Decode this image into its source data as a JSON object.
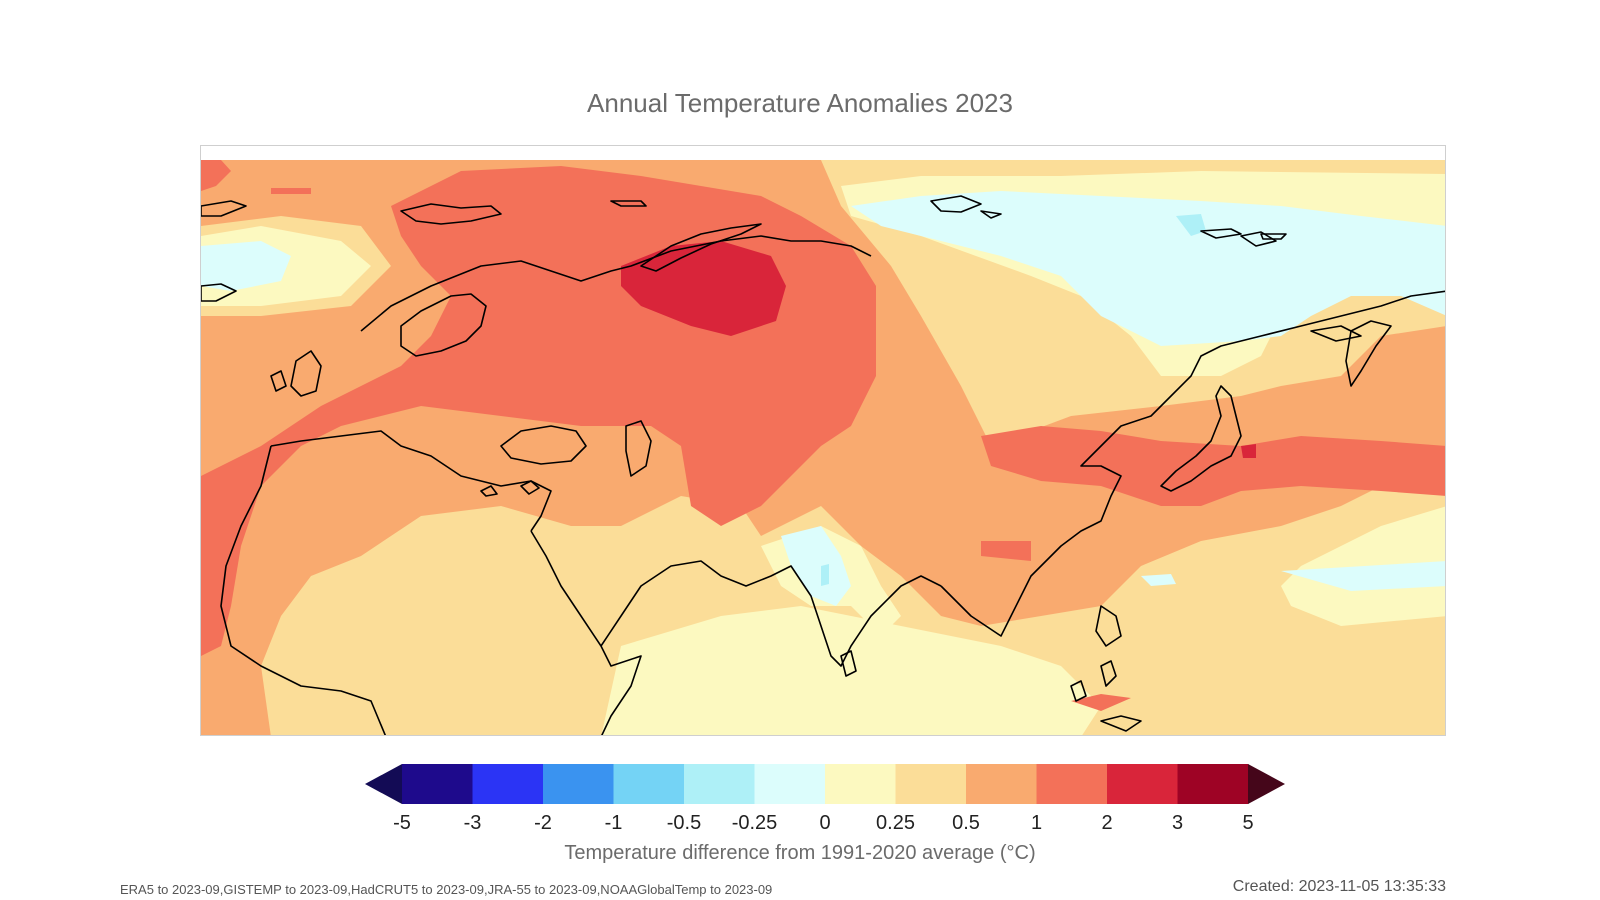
{
  "title": "Annual Temperature Anomalies 2023",
  "colorbar": {
    "label": "Temperature difference from 1991-2020 average (°C)",
    "ticks": [
      "-5",
      "-3",
      "-2",
      "-1",
      "-0.5",
      "-0.25",
      "0",
      "0.25",
      "0.5",
      "1",
      "2",
      "3",
      "5"
    ],
    "colors": [
      "#1e0a8c",
      "#2b34f5",
      "#3a93f0",
      "#74d3f5",
      "#aef0f7",
      "#dcfdfc",
      "#fcf9c0",
      "#fbdd98",
      "#f9aa6f",
      "#f37159",
      "#d9253a",
      "#9e0325"
    ],
    "under_color": "#130b55",
    "over_color": "#45061a"
  },
  "map": {
    "region": "Eurasia, Africa north and Southeast Asia",
    "coastline_color": "#000000"
  },
  "footer": {
    "sources": "ERA5 to 2023-09,GISTEMP to 2023-09,HadCRUT5 to 2023-09,JRA-55 to 2023-09,NOAAGlobalTemp to 2023-09",
    "created": "Created: 2023-11-05 13:35:33"
  }
}
